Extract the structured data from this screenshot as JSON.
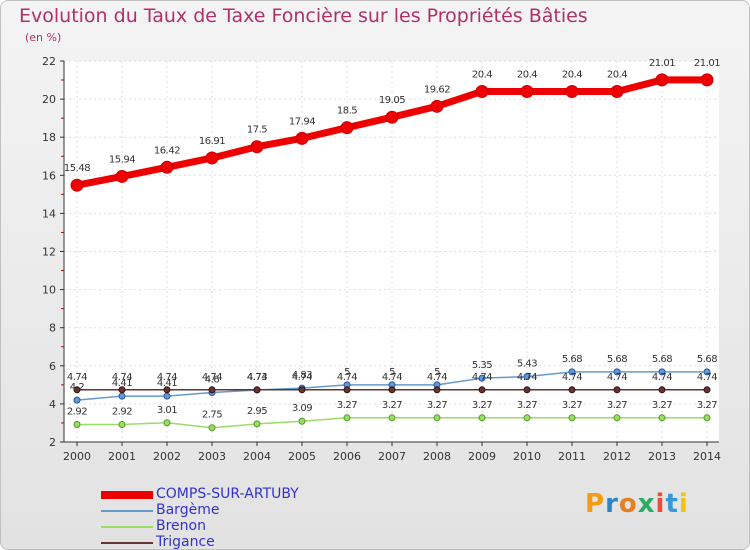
{
  "title": "Evolution du Taux de Taxe Foncière sur les Propriétés Bâties",
  "subtitle": "(en %)",
  "logo": {
    "text": "Proxiti",
    "letters": [
      "P",
      "r",
      "o",
      "x",
      "i",
      "t",
      "i"
    ],
    "colors": [
      "#f39c12",
      "#2e86c1",
      "#e67e22",
      "#27ae60",
      "#e74c3c",
      "#3498db",
      "#f1c40f"
    ]
  },
  "chart_data": {
    "type": "line",
    "title": "Evolution du Taux de Taxe Foncière sur les Propriétés Bâties",
    "ylabel": "(en %)",
    "xlabel": "",
    "ylim": [
      2,
      22
    ],
    "yticks": [
      2,
      4,
      6,
      8,
      10,
      12,
      14,
      16,
      18,
      20,
      22
    ],
    "ytick_labels": [
      "2",
      "4",
      "6",
      "8",
      "10",
      "12",
      "14",
      "16",
      "18",
      "20",
      "22"
    ],
    "categories": [
      "2000",
      "2001",
      "2002",
      "2003",
      "2004",
      "2005",
      "2006",
      "2007",
      "2008",
      "2009",
      "2010",
      "2011",
      "2012",
      "2013",
      "2014"
    ],
    "series": [
      {
        "name": "COMPS-SUR-ARTUBY",
        "color": "#ee0000",
        "values": [
          15.48,
          15.94,
          16.42,
          16.91,
          17.5,
          17.94,
          18.5,
          19.05,
          19.62,
          20.4,
          20.4,
          20.4,
          20.4,
          21.01,
          21.01
        ],
        "labels": [
          "15.48",
          "15.94",
          "16.42",
          "16.91",
          "17.5",
          "17.94",
          "18.5",
          "19.05",
          "19.62",
          "20.4",
          "20.4",
          "20.4",
          "20.4",
          "21.01",
          "21.01"
        ]
      },
      {
        "name": "Bargème",
        "color": "#6699cc",
        "values": [
          4.2,
          4.41,
          4.41,
          4.6,
          4.73,
          4.83,
          5,
          5,
          5,
          5.35,
          5.43,
          5.68,
          5.68,
          5.68,
          5.68
        ],
        "labels": [
          "4.2",
          "4.41",
          "4.41",
          "4.6",
          "4.73",
          "4.83",
          "5",
          "5",
          "5",
          "5.35",
          "5.43",
          "5.68",
          "5.68",
          "5.68",
          "5.68"
        ]
      },
      {
        "name": "Brenon",
        "color": "#99dd66",
        "values": [
          2.92,
          2.92,
          3.01,
          2.75,
          2.95,
          3.09,
          3.27,
          3.27,
          3.27,
          3.27,
          3.27,
          3.27,
          3.27,
          3.27,
          3.27
        ],
        "labels": [
          "2.92",
          "2.92",
          "3.01",
          "2.75",
          "2.95",
          "3.09",
          "3.27",
          "3.27",
          "3.27",
          "3.27",
          "3.27",
          "3.27",
          "3.27",
          "3.27",
          "3.27"
        ]
      },
      {
        "name": "Trigance",
        "color": "#663333",
        "values": [
          4.74,
          4.74,
          4.74,
          4.74,
          4.74,
          4.74,
          4.74,
          4.74,
          4.74,
          4.74,
          4.74,
          4.74,
          4.74,
          4.74,
          4.74
        ],
        "labels": [
          "4.74",
          "4.74",
          "4.74",
          "4.74",
          "4.74",
          "4.74",
          "4.74",
          "4.74",
          "4.74",
          "4.74",
          "4.74",
          "4.74",
          "4.74",
          "4.74",
          "4.74"
        ]
      }
    ]
  }
}
